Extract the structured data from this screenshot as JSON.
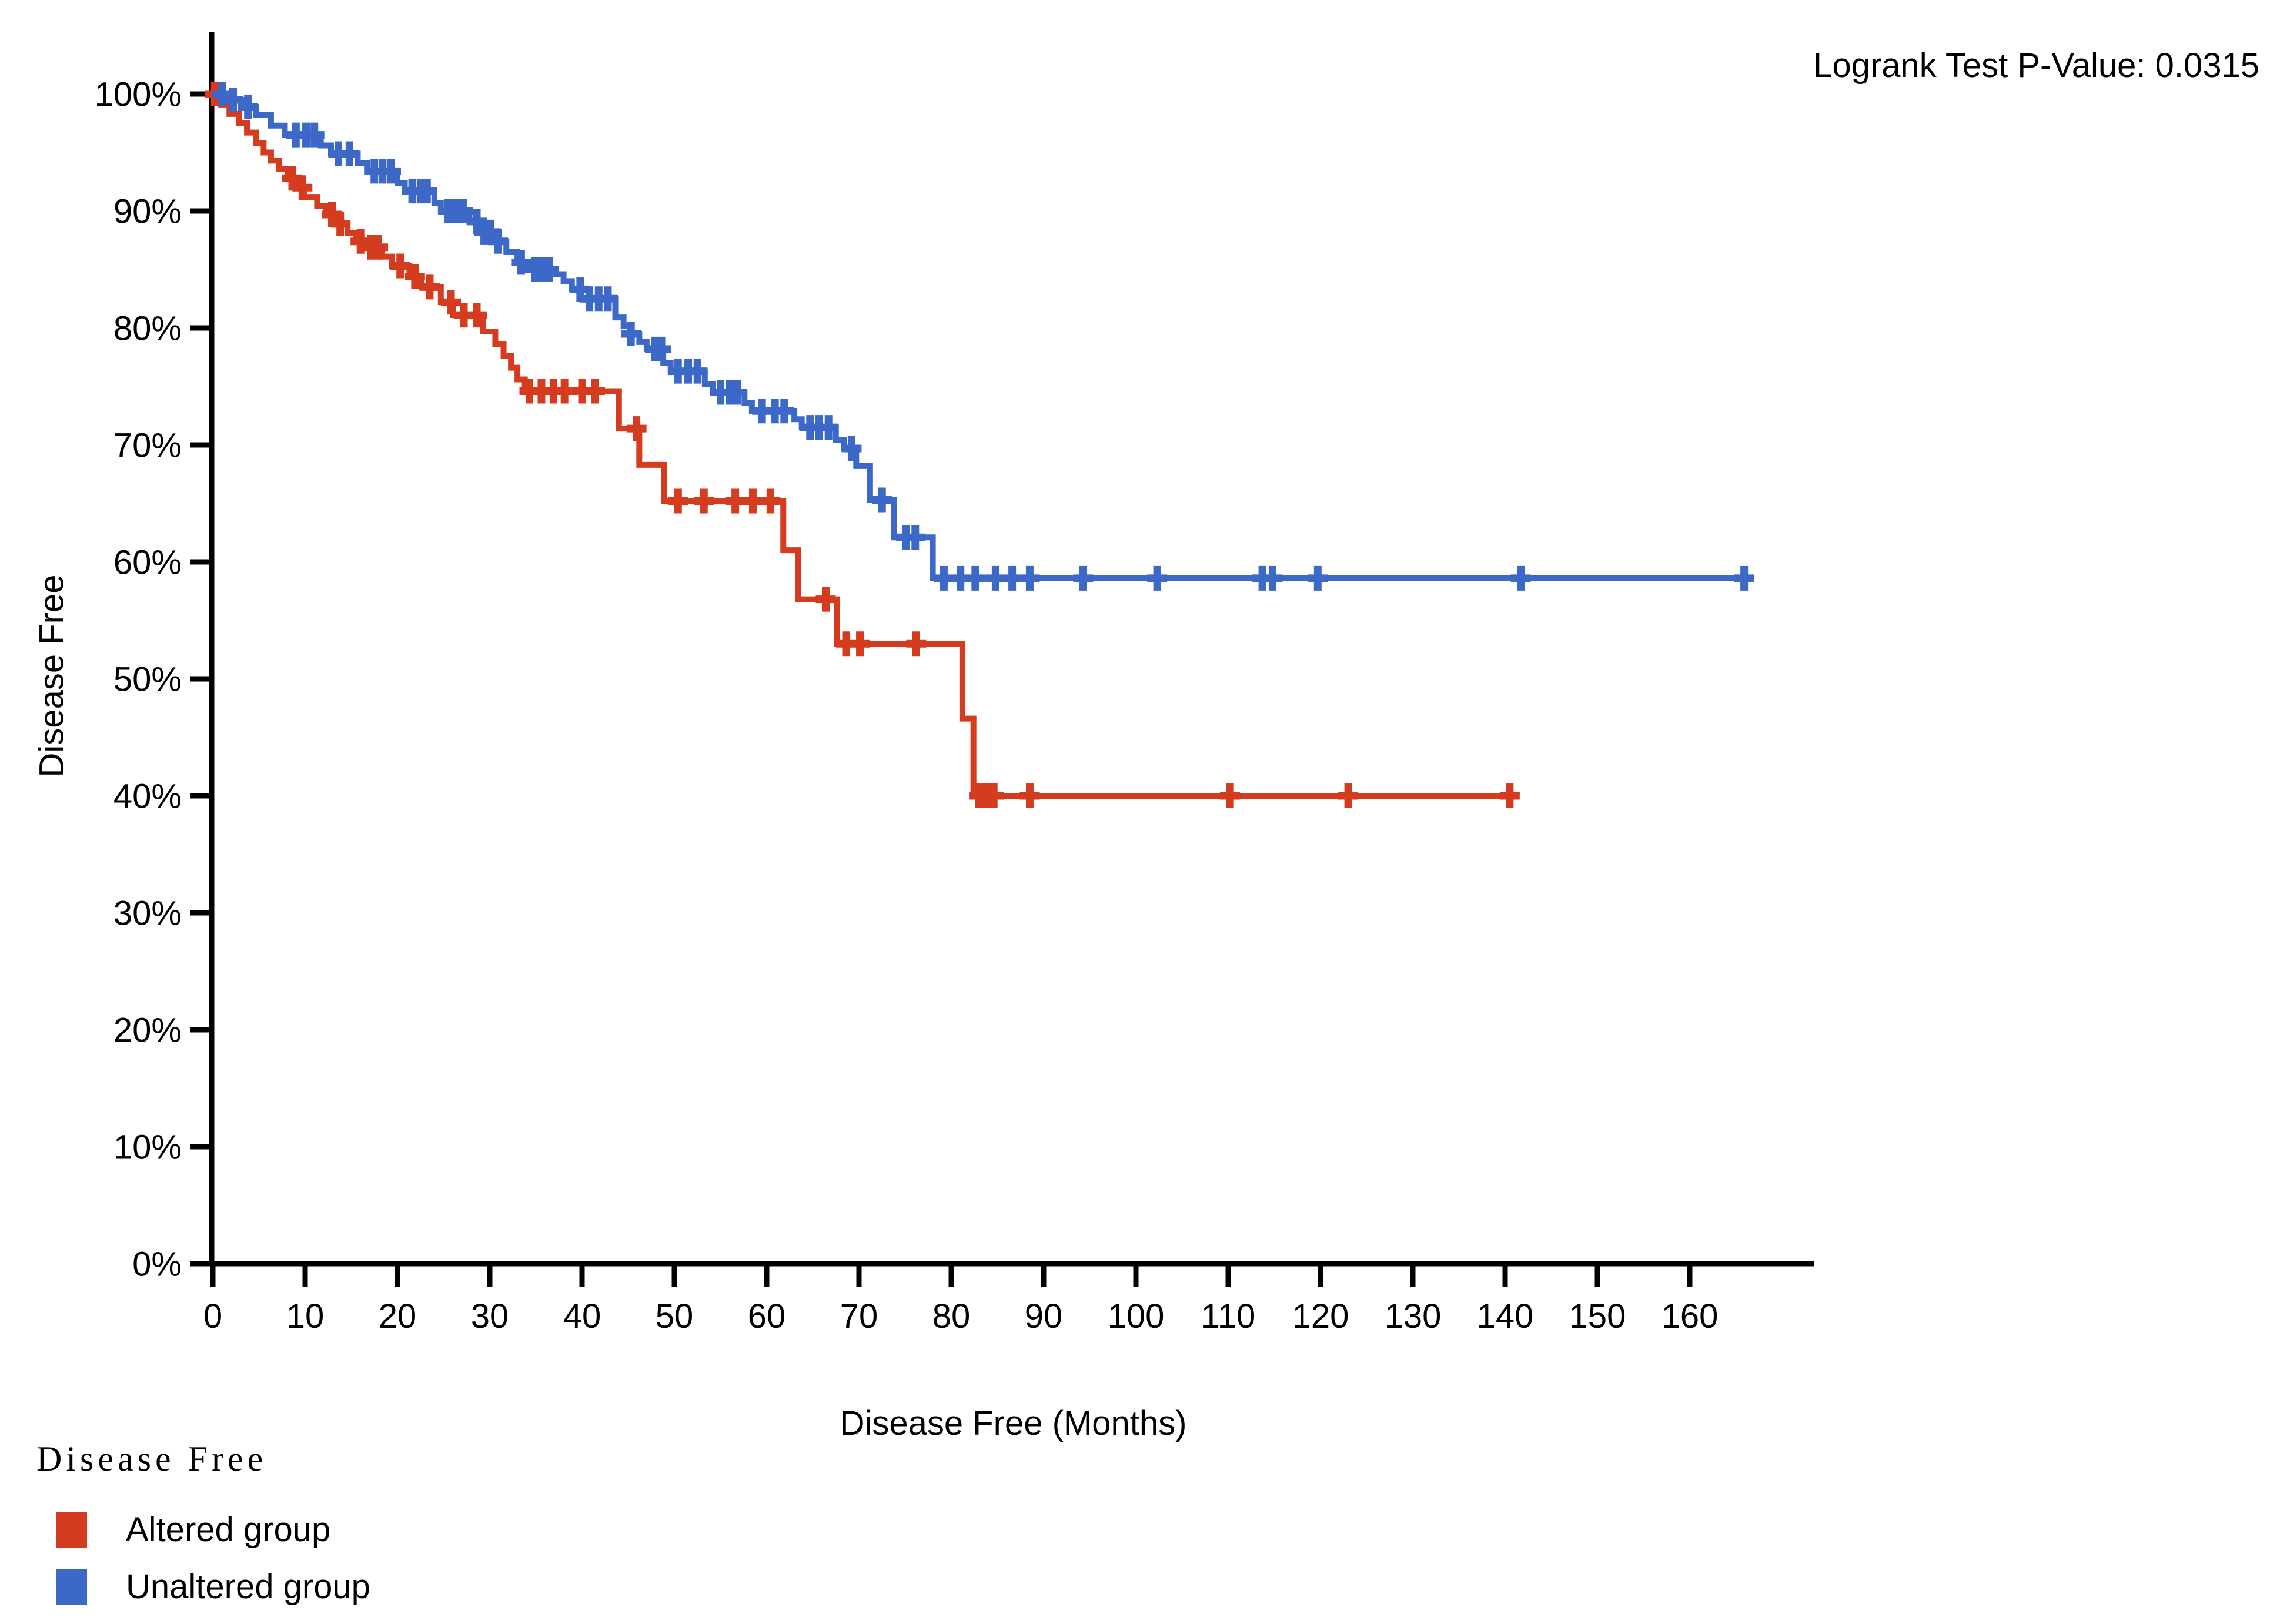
{
  "annotation": {
    "pvalue_label": "Logrank Test P-Value: 0.0315"
  },
  "colors": {
    "background": "#ffffff",
    "axis": "#000000",
    "altered_red": "#d53b1e",
    "unaltered_blue": "#3c68c8"
  },
  "chart_data": {
    "type": "line",
    "subtype": "kaplan_meier_step",
    "title": "Disease Free",
    "xlabel": "Disease Free (Months)",
    "ylabel": "Disease Free",
    "xlim": [
      0,
      170
    ],
    "ylim": [
      0,
      100
    ],
    "grid": false,
    "x_ticks": {
      "values": [
        0,
        10,
        20,
        30,
        40,
        50,
        60,
        70,
        80,
        90,
        100,
        110,
        120,
        130,
        140,
        150,
        160
      ],
      "labels": [
        "0",
        "10",
        "20",
        "30",
        "40",
        "50",
        "60",
        "70",
        "80",
        "90",
        "100",
        "110",
        "120",
        "130",
        "140",
        "150",
        "160"
      ]
    },
    "y_ticks": {
      "values": [
        0,
        10,
        20,
        30,
        40,
        50,
        60,
        70,
        80,
        90,
        100
      ],
      "labels": [
        "0%",
        "10%",
        "20%",
        "30%",
        "40%",
        "50%",
        "60%",
        "70%",
        "80%",
        "90%",
        "100%"
      ]
    },
    "annotations": [
      {
        "text": "Logrank Test P-Value: 0.0315",
        "position": "top-right"
      }
    ],
    "legend": {
      "title": "Disease Free",
      "position": "bottom-left",
      "entries": [
        {
          "label": "Altered group",
          "color": "#d53b1e"
        },
        {
          "label": "Unaltered group",
          "color": "#3c68c8"
        }
      ]
    },
    "series": [
      {
        "name": "Altered group",
        "color": "#d53b1e",
        "steps": [
          [
            0,
            100
          ],
          [
            0.9,
            99.1
          ],
          [
            1.8,
            98.3
          ],
          [
            2.8,
            97.5
          ],
          [
            3.7,
            96.7
          ],
          [
            4.7,
            95.8
          ],
          [
            5.5,
            95.0
          ],
          [
            6.3,
            94.3
          ],
          [
            7.2,
            93.6
          ],
          [
            8.1,
            92.8
          ],
          [
            9.0,
            92.0
          ],
          [
            9.9,
            91.2
          ],
          [
            11.3,
            90.4
          ],
          [
            12.3,
            89.7
          ],
          [
            13.3,
            88.9
          ],
          [
            14.6,
            88.1
          ],
          [
            15.5,
            87.4
          ],
          [
            16.5,
            86.9
          ],
          [
            18.3,
            86.1
          ],
          [
            19.4,
            85.3
          ],
          [
            21.3,
            84.4
          ],
          [
            22.6,
            83.5
          ],
          [
            24.7,
            82.2
          ],
          [
            26.0,
            81.1
          ],
          [
            29.3,
            79.7
          ],
          [
            30.6,
            78.6
          ],
          [
            31.5,
            77.6
          ],
          [
            32.3,
            76.6
          ],
          [
            33.0,
            75.6
          ],
          [
            33.8,
            74.6
          ],
          [
            44.0,
            71.4
          ],
          [
            46.2,
            68.3
          ],
          [
            48.9,
            65.2
          ],
          [
            61.8,
            61.0
          ],
          [
            63.4,
            56.8
          ],
          [
            67.6,
            53.0
          ],
          [
            81.2,
            46.6
          ],
          [
            82.4,
            40.0
          ]
        ],
        "end_time": 141.3,
        "censor_times": [
          0.2,
          8.6,
          9.7,
          12.9,
          13.8,
          16.0,
          17.1,
          17.9,
          20.3,
          21.9,
          23.5,
          25.8,
          27.2,
          28.6,
          34.3,
          35.6,
          36.9,
          38.1,
          40.0,
          41.4,
          45.9,
          50.4,
          53.2,
          56.6,
          58.5,
          60.4,
          66.4,
          68.6,
          70.1,
          76.2,
          83.0,
          83.8,
          84.6,
          88.5,
          110.2,
          123.0,
          140.5
        ]
      },
      {
        "name": "Unaltered group",
        "color": "#3c68c8",
        "steps": [
          [
            0,
            100
          ],
          [
            1.8,
            99.5
          ],
          [
            3.2,
            98.9
          ],
          [
            4.7,
            98.2
          ],
          [
            6.3,
            97.3
          ],
          [
            7.8,
            96.5
          ],
          [
            11.7,
            95.6
          ],
          [
            12.8,
            94.9
          ],
          [
            15.7,
            94.1
          ],
          [
            16.7,
            93.4
          ],
          [
            20.0,
            92.4
          ],
          [
            20.8,
            91.7
          ],
          [
            24.0,
            90.7
          ],
          [
            24.7,
            90.0
          ],
          [
            27.8,
            89.1
          ],
          [
            28.7,
            88.2
          ],
          [
            30.4,
            87.4
          ],
          [
            31.8,
            86.5
          ],
          [
            33.0,
            85.6
          ],
          [
            34.1,
            85.0
          ],
          [
            37.2,
            84.6
          ],
          [
            38.0,
            84.0
          ],
          [
            38.9,
            83.3
          ],
          [
            39.9,
            82.5
          ],
          [
            43.6,
            80.9
          ],
          [
            44.5,
            80.2
          ],
          [
            45.3,
            79.5
          ],
          [
            46.2,
            78.8
          ],
          [
            47.0,
            78.2
          ],
          [
            48.8,
            77.0
          ],
          [
            49.6,
            76.3
          ],
          [
            53.3,
            75.2
          ],
          [
            54.2,
            74.5
          ],
          [
            57.6,
            73.6
          ],
          [
            58.4,
            72.9
          ],
          [
            63.0,
            72.2
          ],
          [
            63.8,
            71.5
          ],
          [
            67.5,
            70.4
          ],
          [
            68.4,
            69.7
          ],
          [
            69.7,
            68.2
          ],
          [
            71.2,
            65.3
          ],
          [
            73.8,
            62.1
          ],
          [
            78.0,
            58.6
          ]
        ],
        "end_time": 166.4,
        "censor_times": [
          1.0,
          2.2,
          3.8,
          9.0,
          10.1,
          11.0,
          13.6,
          14.8,
          17.5,
          18.4,
          19.3,
          21.6,
          22.5,
          23.2,
          25.5,
          26.3,
          27.1,
          28.6,
          29.4,
          30.1,
          30.9,
          33.4,
          34.9,
          35.7,
          36.4,
          39.8,
          40.8,
          41.8,
          42.8,
          45.3,
          47.9,
          48.6,
          50.4,
          51.5,
          52.5,
          55.0,
          56.0,
          56.8,
          59.5,
          60.9,
          61.9,
          64.7,
          65.7,
          66.7,
          69.2,
          72.5,
          75.1,
          76.1,
          79.2,
          81.0,
          82.6,
          84.8,
          86.6,
          88.5,
          94.3,
          102.3,
          113.7,
          114.8,
          119.7,
          141.7,
          165.9
        ]
      }
    ]
  }
}
